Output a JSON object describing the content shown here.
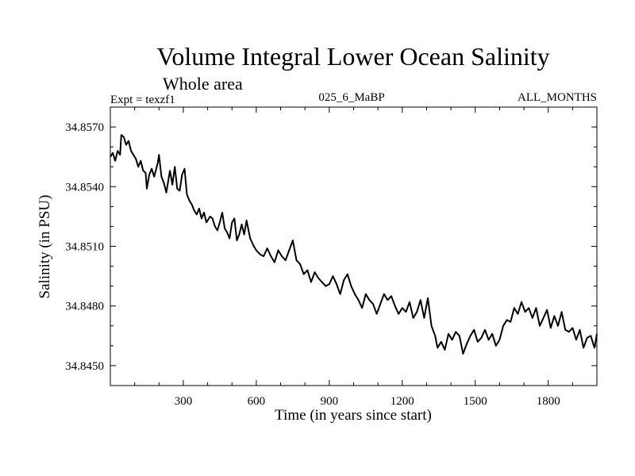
{
  "chart_data": {
    "type": "line",
    "title": "Volume Integral Lower Ocean Salinity",
    "subtitle": "Whole area",
    "annotations": {
      "left": "Expt = texzf1",
      "center": "025_6_MaBP",
      "right": "ALL_MONTHS"
    },
    "xlabel": "Time (in years since start)",
    "ylabel": "Salinity (in PSU)",
    "xlim": [
      0,
      2000
    ],
    "ylim": [
      34.844,
      34.858
    ],
    "xticks": [
      300,
      600,
      900,
      1200,
      1500,
      1800
    ],
    "xtick_labels": [
      "300",
      "600",
      "900",
      "1200",
      "1500",
      "1800"
    ],
    "yticks": [
      34.857,
      34.854,
      34.851,
      34.848,
      34.845
    ],
    "ytick_labels": [
      "34.8570",
      "34.8540",
      "34.8510",
      "34.8480",
      "34.8450"
    ],
    "grid": false,
    "legend": "none",
    "series": [
      {
        "name": "Salinity",
        "color": "#000000",
        "x": [
          0,
          10,
          20,
          30,
          40,
          45,
          55,
          65,
          75,
          85,
          95,
          105,
          115,
          125,
          135,
          145,
          150,
          160,
          170,
          180,
          195,
          200,
          210,
          220,
          230,
          245,
          255,
          265,
          275,
          285,
          295,
          305,
          315,
          325,
          335,
          345,
          355,
          365,
          375,
          385,
          395,
          410,
          420,
          430,
          440,
          450,
          460,
          470,
          480,
          490,
          500,
          510,
          520,
          530,
          540,
          550,
          560,
          575,
          590,
          600,
          615,
          630,
          645,
          660,
          675,
          690,
          705,
          720,
          735,
          750,
          765,
          780,
          795,
          810,
          825,
          840,
          855,
          870,
          885,
          900,
          915,
          930,
          945,
          960,
          975,
          990,
          1005,
          1020,
          1035,
          1050,
          1065,
          1080,
          1095,
          1110,
          1125,
          1140,
          1155,
          1170,
          1185,
          1200,
          1215,
          1230,
          1245,
          1260,
          1275,
          1290,
          1305,
          1320,
          1335,
          1345,
          1360,
          1375,
          1390,
          1405,
          1420,
          1435,
          1450,
          1465,
          1480,
          1495,
          1510,
          1525,
          1540,
          1555,
          1570,
          1585,
          1600,
          1615,
          1630,
          1645,
          1660,
          1675,
          1690,
          1705,
          1720,
          1735,
          1750,
          1765,
          1780,
          1795,
          1810,
          1825,
          1840,
          1855,
          1870,
          1885,
          1900,
          1915,
          1930,
          1945,
          1960,
          1975,
          1990,
          2000
        ],
        "y": [
          34.8555,
          34.8557,
          34.8553,
          34.8558,
          34.8556,
          34.8566,
          34.8565,
          34.8561,
          34.8563,
          34.8558,
          34.8556,
          34.8554,
          34.855,
          34.8553,
          34.8548,
          34.8547,
          34.8539,
          34.8546,
          34.8549,
          34.8545,
          34.8552,
          34.8556,
          34.8545,
          34.8542,
          34.8537,
          34.8548,
          34.8541,
          34.855,
          34.8539,
          34.8538,
          34.8546,
          34.8549,
          34.8536,
          34.8533,
          34.8531,
          34.8528,
          34.8526,
          34.8529,
          34.8524,
          34.8527,
          34.8522,
          34.8525,
          34.8524,
          34.852,
          34.8518,
          34.8522,
          34.8527,
          34.8519,
          34.8517,
          34.8514,
          34.8522,
          34.8524,
          34.8513,
          34.8516,
          34.8521,
          34.8516,
          34.8523,
          34.8514,
          34.851,
          34.8508,
          34.8506,
          34.8505,
          34.8509,
          34.8505,
          34.8502,
          34.8508,
          34.8505,
          34.8503,
          34.8508,
          34.8513,
          34.8503,
          34.8501,
          34.8496,
          34.8498,
          34.8492,
          34.8497,
          34.8494,
          34.8492,
          34.849,
          34.8491,
          34.8495,
          34.8491,
          34.8486,
          34.8493,
          34.8496,
          34.849,
          34.8486,
          34.8483,
          34.8479,
          34.8486,
          34.8483,
          34.8481,
          34.8476,
          34.8481,
          34.8486,
          34.8483,
          34.8485,
          34.848,
          34.8476,
          34.8479,
          34.8477,
          34.8482,
          34.8474,
          34.8477,
          34.8483,
          34.8474,
          34.8484,
          34.847,
          34.8465,
          34.8459,
          34.8462,
          34.8458,
          34.8466,
          34.8463,
          34.8467,
          34.8465,
          34.8456,
          34.8461,
          34.8465,
          34.8468,
          34.8462,
          34.8464,
          34.8468,
          34.8463,
          34.8466,
          34.846,
          34.8463,
          34.847,
          34.8473,
          34.8472,
          34.8479,
          34.8476,
          34.8482,
          34.8477,
          34.8479,
          34.8474,
          34.8479,
          34.847,
          34.8474,
          34.8478,
          34.8469,
          34.8475,
          34.847,
          34.8477,
          34.8468,
          34.8467,
          34.8469,
          34.8463,
          34.8468,
          34.8459,
          34.8464,
          34.8465,
          34.8459,
          34.8466
        ]
      }
    ]
  }
}
